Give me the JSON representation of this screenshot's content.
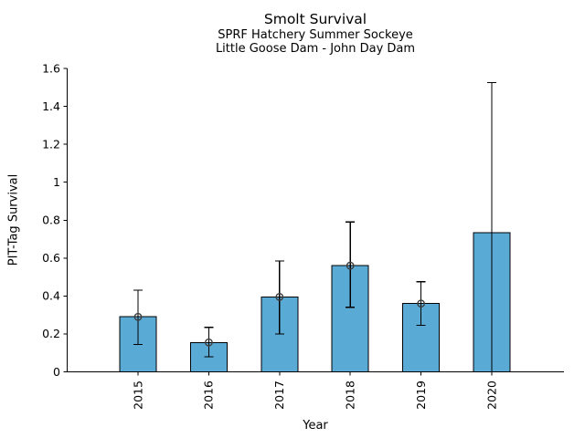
{
  "figure": {
    "background": "#ffffff"
  },
  "chart_data": {
    "type": "bar",
    "title": "Smolt Survival",
    "subtitle1": "SPRF Hatchery Summer Sockeye",
    "subtitle2": "Little Goose Dam - John Day Dam",
    "xlabel": "Year",
    "ylabel": "PIT-Tag Survival",
    "ylim": [
      0,
      1.6
    ],
    "yticks": [
      0,
      0.2,
      0.4,
      0.6,
      0.8,
      1,
      1.2,
      1.4,
      1.6
    ],
    "ytick_labels": [
      "0",
      "0.2",
      "0.4",
      "0.6",
      "0.8",
      "1",
      "1.2",
      "1.4",
      "1.6"
    ],
    "categories": [
      "2015",
      "2016",
      "2017",
      "2018",
      "2019",
      "2020"
    ],
    "values": [
      0.29,
      0.155,
      0.395,
      0.56,
      0.36,
      0.735
    ],
    "error_low": [
      0.145,
      0.08,
      0.2,
      0.34,
      0.245,
      0.0
    ],
    "error_high": [
      0.43,
      0.235,
      0.585,
      0.79,
      0.475,
      1.525
    ],
    "point_markers": [
      true,
      true,
      true,
      true,
      true,
      false
    ],
    "bar_color": "#5AAAD6",
    "bar_edge_color": "#000000",
    "error_bar_color": "#000000",
    "marker_edge_color": "#3d3d3d",
    "axis_color": "#000000",
    "grid": false,
    "legend_position": "none"
  }
}
